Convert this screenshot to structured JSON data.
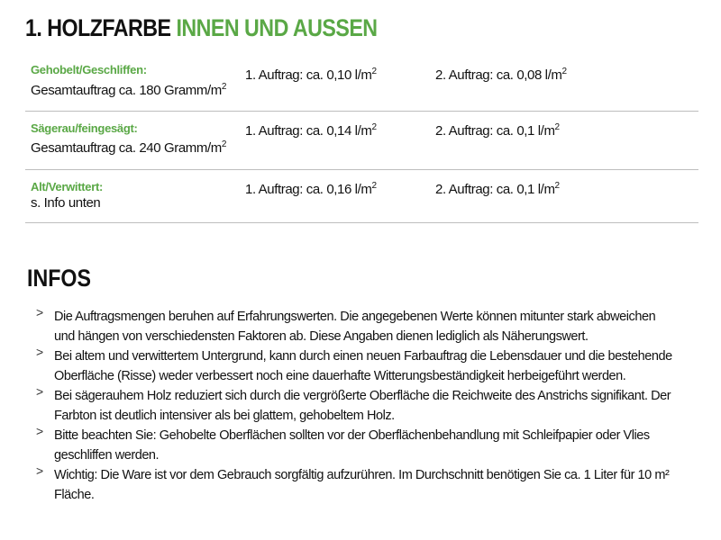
{
  "title": {
    "prefix": "1. HOLZFARBE",
    "highlight": "INNEN UND AUSSEN"
  },
  "rows": [
    {
      "label": "Gehobelt/Geschliffen:",
      "sub": "Gesamtauftrag ca. 180 Gramm/m",
      "sub_sup": "2",
      "c2": "1. Auftrag: ca. 0,10 l/m",
      "c2_sup": "2",
      "c3": "2. Auftrag: ca. 0,08 l/m",
      "c3_sup": "2"
    },
    {
      "label": "Sägerau/feingesägt:",
      "sub": "Gesamtauftrag ca. 240 Gramm/m",
      "sub_sup": "2",
      "c2": "1. Auftrag: ca. 0,14 l/m",
      "c2_sup": "2",
      "c3": "2. Auftrag: ca. 0,1 l/m",
      "c3_sup": "2"
    },
    {
      "label": "Alt/Verwittert:",
      "sub": "s. Info unten",
      "c2": "1. Auftrag: ca. 0,16 l/m",
      "c2_sup": "2",
      "c3": "2. Auftrag: ca. 0,1 l/m",
      "c3_sup": "2"
    }
  ],
  "infos": {
    "heading": "INFOS",
    "bullet_icon": "chevron-right",
    "items": [
      {
        "lines": [
          "Die Auftragsmengen beruhen auf Erfahrungswerten. Die angegebenen Werte können mitunter stark abweichen",
          "und hängen von verschiedensten Faktoren ab. Diese Angaben dienen lediglich als Näherungswert."
        ]
      },
      {
        "lines": [
          "Bei altem und verwittertem Untergrund, kann durch einen neuen Farbauftrag die Lebensdauer und die bestehende",
          "Oberfläche (Risse) weder verbessert noch eine dauerhafte Witterungsbeständigkeit herbeigeführt werden."
        ]
      },
      {
        "lines": [
          "Bei sägerauhem Holz reduziert sich durch die vergrößerte Oberfläche die Reichweite des Anstrichs signifikant. Der",
          "Farbton ist deutlich intensiver als bei glattem, gehobeltem Holz."
        ]
      },
      {
        "lines": [
          "Bitte beachten Sie: Gehobelte Oberflächen sollten vor der Oberflächenbehandlung mit Schleifpapier oder Vlies",
          "geschliffen werden."
        ]
      },
      {
        "lines": [
          "Wichtig: Die Ware ist vor dem Gebrauch sorgfältig aufzurühren. Im Durchschnitt benötigen Sie ca. 1 Liter für 10 m²",
          "Fläche."
        ]
      }
    ]
  },
  "colors": {
    "accent": "#5aa846",
    "divider": "#bdbdbd"
  }
}
